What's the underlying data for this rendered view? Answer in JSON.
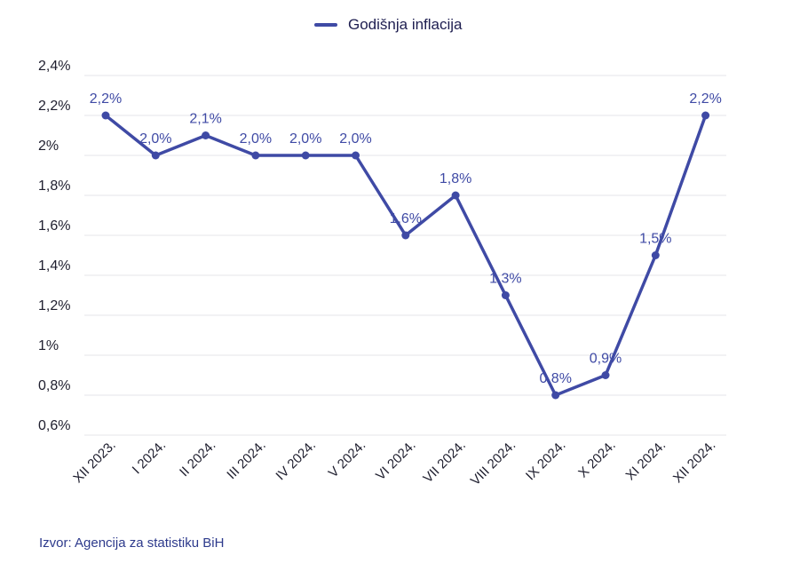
{
  "legend": {
    "series_name": "Godišnja inflacija"
  },
  "source": "Izvor: Agencija za statistiku BiH",
  "colors": {
    "line": "#3f4aa5",
    "grid": "#e6e6ea"
  },
  "chart_data": {
    "type": "line",
    "categories": [
      "XII 2023.",
      "I 2024.",
      "II 2024.",
      "III 2024.",
      "IV 2024.",
      "V 2024.",
      "VI 2024.",
      "VII 2024.",
      "VIII 2024.",
      "IX 2024.",
      "X 2024.",
      "XI 2024.",
      "XII 2024."
    ],
    "series": [
      {
        "name": "Godišnja inflacija",
        "values": [
          2.2,
          2.0,
          2.1,
          2.0,
          2.0,
          2.0,
          1.6,
          1.8,
          1.3,
          0.8,
          0.9,
          1.5,
          2.2
        ],
        "data_labels": [
          "2,2%",
          "2,0%",
          "2,1%",
          "2,0%",
          "2,0%",
          "2,0%",
          "1,6%",
          "1,8%",
          "1,3%",
          "0,8%",
          "0,9%",
          "1,5%",
          "2,2%"
        ]
      }
    ],
    "ylim": [
      0.6,
      2.4
    ],
    "yticks": [
      {
        "value": 2.4,
        "label": "2,4%"
      },
      {
        "value": 2.2,
        "label": "2,2%"
      },
      {
        "value": 2.0,
        "label": "2%"
      },
      {
        "value": 1.8,
        "label": "1,8%"
      },
      {
        "value": 1.6,
        "label": "1,6%"
      },
      {
        "value": 1.4,
        "label": "1,4%"
      },
      {
        "value": 1.2,
        "label": "1,2%"
      },
      {
        "value": 1.0,
        "label": "1%"
      },
      {
        "value": 0.8,
        "label": "0,8%"
      },
      {
        "value": 0.6,
        "label": "0,6%"
      }
    ],
    "grid": true,
    "legend_position": "top-center",
    "xlabel": "",
    "ylabel": ""
  }
}
